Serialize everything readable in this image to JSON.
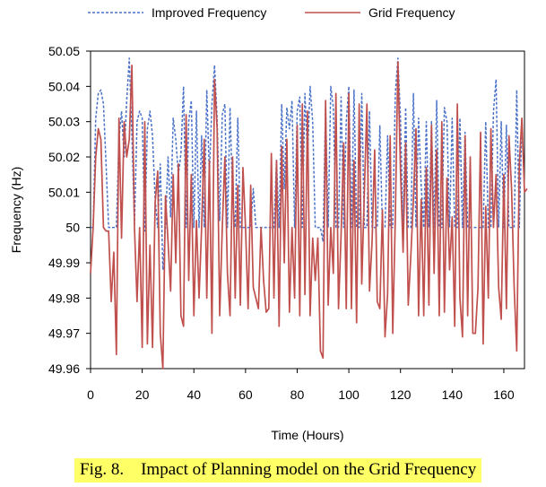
{
  "chart_data": {
    "type": "line",
    "xlabel": "Time (Hours)",
    "ylabel": "Frequency (Hz)",
    "xlim": [
      0,
      168
    ],
    "ylim": [
      49.96,
      50.05
    ],
    "x_ticks": [
      0,
      20,
      40,
      60,
      80,
      100,
      120,
      140,
      160
    ],
    "x_tick_labels": [
      "0",
      "20",
      "40",
      "60",
      "80",
      "100",
      "120",
      "140",
      "160"
    ],
    "y_ticks": [
      49.96,
      49.97,
      49.98,
      49.99,
      50,
      50.01,
      50.02,
      50.03,
      50.04,
      50.05
    ],
    "y_tick_labels": [
      "49.96",
      "49.97",
      "49.98",
      "49.99",
      "50",
      "50.01",
      "50.02",
      "50.03",
      "50.04",
      "50.05"
    ],
    "legend_position": "top",
    "grid": false,
    "series": [
      {
        "name": "Improved Frequency",
        "color": "#4a72c8",
        "dash": "dashed",
        "values": [
          50.0,
          50.0,
          50.031,
          50.038,
          50.039,
          50.035,
          50.018,
          50.0,
          50.0,
          50.0,
          50.0,
          50.025,
          50.033,
          50.02,
          50.036,
          50.048,
          50.026,
          50.001,
          50.03,
          50.033,
          50.031,
          49.999,
          50.028,
          50.033,
          50.026,
          50.008,
          50.0,
          50.018,
          49.988,
          50.0,
          50.02,
          50.003,
          50.031,
          50.025,
          50.015,
          50.021,
          50.04,
          50.0,
          50.03,
          50.036,
          50.0,
          50.033,
          50.0,
          50.026,
          50.0,
          50.039,
          50.015,
          50.035,
          50.046,
          50.031,
          50.002,
          50.032,
          50.035,
          50.0,
          50.034,
          50.008,
          50.0,
          50.031,
          50.0,
          50.0,
          50.0,
          50.0,
          50.0,
          50.011,
          50.0,
          50.0,
          50.0,
          50.0,
          50.0,
          50.0,
          50.0,
          50.0,
          50.019,
          50.0,
          50.035,
          50.011,
          50.034,
          50.028,
          50.036,
          50.0,
          50.033,
          50.037,
          50.0,
          50.038,
          50.02,
          50.04,
          50.03,
          50.0,
          50.0,
          50.0,
          49.996,
          50.034,
          50.0,
          50.04,
          50.034,
          50.0,
          50.0,
          50.037,
          50.0,
          50.03,
          50.04,
          50.0,
          50.039,
          50.0,
          50.0,
          50.038,
          50.0,
          50.0,
          50.033,
          50.0,
          50.0,
          50.0,
          50.029,
          50.0,
          50.0,
          50.026,
          50.0,
          50.0,
          50.038,
          50.048,
          50.031,
          50.0,
          50.034,
          50.0,
          50.0,
          50.038,
          50.0,
          50.031,
          50.012,
          50.0,
          50.03,
          50.0,
          50.03,
          50.0,
          50.036,
          50.0,
          50.0,
          50.034,
          50.03,
          50.0,
          50.031,
          50.0,
          50.0,
          50.031,
          50.0,
          50.027,
          50.0,
          50.0,
          50.0,
          50.0,
          50.0,
          50.0,
          50.0,
          50.03,
          50.0,
          50.0,
          50.033,
          50.042,
          50.0,
          50.03,
          50.0,
          50.029,
          50.0,
          50.0,
          50.0,
          50.039,
          50.0,
          50.031
        ]
      },
      {
        "name": "Grid Frequency",
        "color": "#c0504d",
        "dash": "solid",
        "values": [
          49.987,
          50.0,
          50.02,
          50.028,
          50.025,
          50.0,
          49.999,
          49.999,
          49.979,
          49.993,
          49.964,
          50.031,
          49.997,
          50.03,
          50.02,
          50.025,
          50.046,
          50.0,
          49.979,
          50.0,
          49.966,
          50.03,
          49.967,
          49.995,
          49.966,
          50.007,
          50.016,
          49.97,
          49.96,
          50.009,
          49.996,
          49.982,
          50.015,
          49.99,
          50.018,
          49.975,
          49.972,
          50.032,
          49.985,
          50.015,
          49.975,
          50.002,
          49.98,
          50.0,
          50.025,
          49.98,
          50.019,
          49.97,
          50.042,
          50.028,
          49.975,
          50.0,
          50.02,
          49.987,
          49.975,
          50.02,
          49.98,
          50.012,
          49.978,
          50.017,
          50.0,
          49.977,
          50.012,
          49.983,
          49.98,
          49.977,
          50.0,
          49.985,
          49.976,
          49.977,
          50.021,
          49.98,
          50.019,
          49.972,
          50.023,
          49.99,
          50.025,
          49.976,
          50.0,
          49.98,
          50.029,
          49.975,
          50.035,
          49.981,
          50.033,
          49.975,
          49.997,
          49.985,
          49.997,
          49.965,
          49.963,
          50.036,
          49.978,
          50.0,
          49.987,
          50.038,
          49.977,
          49.998,
          50.024,
          49.977,
          50.038,
          49.977,
          50.019,
          49.973,
          50.035,
          49.984,
          50.01,
          50.035,
          49.982,
          49.996,
          50.022,
          49.979,
          49.977,
          50.005,
          49.969,
          49.981,
          50.026,
          49.97,
          50.003,
          50.047,
          50.016,
          49.993,
          50.024,
          49.978,
          49.992,
          50.008,
          50.028,
          49.975,
          50.008,
          49.975,
          50.017,
          49.978,
          50.029,
          49.987,
          50.022,
          49.975,
          50.03,
          49.976,
          50.014,
          49.988,
          50.003,
          49.972,
          50.035,
          49.98,
          49.969,
          50.026,
          49.975,
          50.02,
          49.97,
          49.97,
          49.983,
          50.027,
          49.967,
          50.006,
          49.98,
          50.028,
          50.0,
          50.015,
          49.983,
          49.974,
          50.015,
          49.977,
          50.026,
          50.011,
          49.983,
          49.965,
          50.018,
          50.031,
          50.01,
          50.011
        ]
      }
    ]
  },
  "caption": "Fig. 8.    Impact of Planning model on the Grid Frequency"
}
